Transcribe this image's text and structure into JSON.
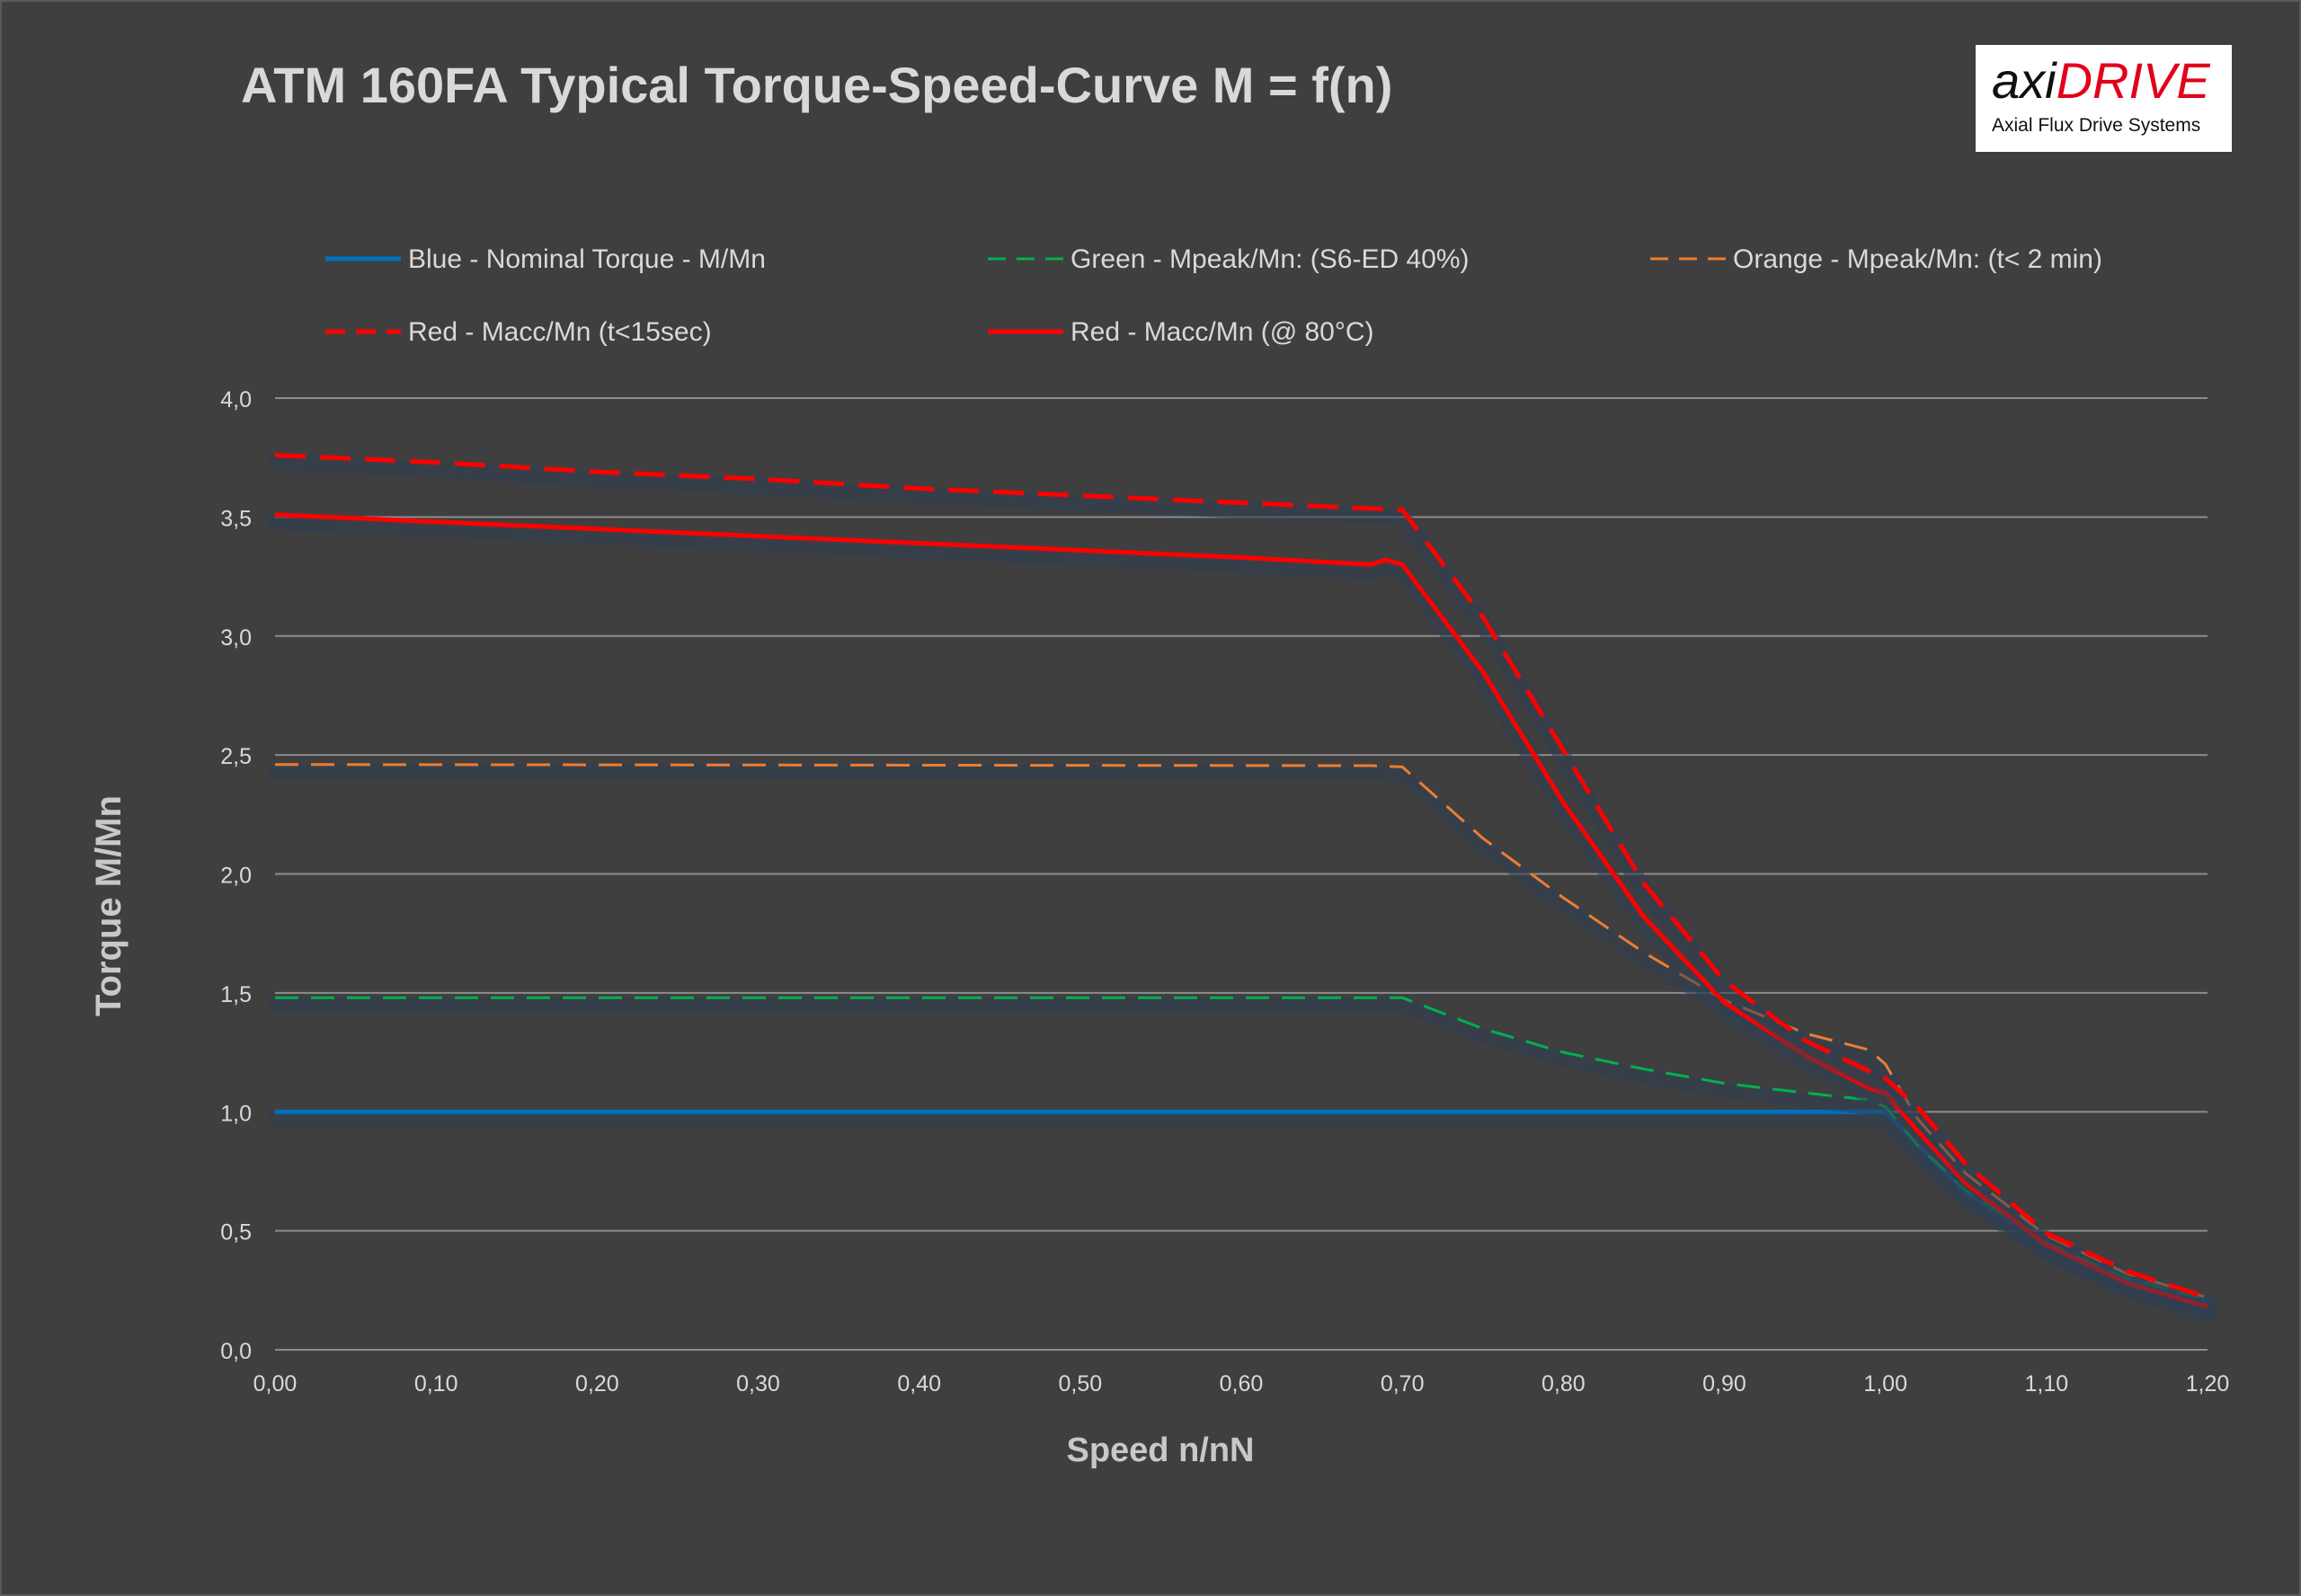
{
  "header": {
    "title": "ATM 160FA Typical Torque-Speed-Curve M = f(n)",
    "logo_main_a": "axi",
    "logo_main_b": "DRIVE",
    "logo_sub": "Axial Flux Drive Systems"
  },
  "colors": {
    "background": "#3f3f3f",
    "text": "#d9d9d9",
    "grid": "#8c8c8c",
    "blue": "#0070c0",
    "green": "#00b050",
    "orange": "#ed7d31",
    "red": "#ff0000",
    "logo_red": "#e2001a"
  },
  "chart_data": {
    "type": "line",
    "title": "ATM 160FA Typical Torque-Speed-Curve M = f(n)",
    "xlabel": "Speed n/nN",
    "ylabel": "Torque M/Mn",
    "xlim": [
      0,
      1.2
    ],
    "ylim": [
      0,
      4
    ],
    "x_ticks": [
      "0,00",
      "0,10",
      "0,20",
      "0,30",
      "0,40",
      "0,50",
      "0,60",
      "0,70",
      "0,80",
      "0,90",
      "1,00",
      "1,10",
      "1,20"
    ],
    "y_ticks": [
      "0,0",
      "0,5",
      "1,0",
      "1,5",
      "2,0",
      "2,5",
      "3,0",
      "3,5",
      "4,0"
    ],
    "grid": "horizontal",
    "legend_position": "top",
    "series": [
      {
        "name": "Blue -  Nominal Torque  - M/Mn",
        "color": "#0070c0",
        "dash": "solid",
        "width": 5,
        "x": [
          0,
          0.7,
          0.98,
          1.0,
          1.02,
          1.05,
          1.1,
          1.15,
          1.2
        ],
        "y": [
          1.0,
          1.0,
          1.0,
          1.0,
          0.86,
          0.66,
          0.44,
          0.3,
          0.2
        ]
      },
      {
        "name": "Green -  Mpeak/Mn: (S6-ED 40%)",
        "color": "#00b050",
        "dash": "long-dash",
        "width": 3,
        "x": [
          0,
          0.7,
          0.75,
          0.8,
          0.85,
          0.9,
          0.95,
          0.99,
          1.0,
          1.02,
          1.05,
          1.1,
          1.15,
          1.2
        ],
        "y": [
          1.48,
          1.48,
          1.35,
          1.25,
          1.18,
          1.12,
          1.08,
          1.05,
          1.02,
          0.86,
          0.67,
          0.45,
          0.3,
          0.21
        ]
      },
      {
        "name": "Orange -  Mpeak/Mn: (t< 2 min)",
        "color": "#ed7d31",
        "dash": "long-dash",
        "width": 3,
        "x": [
          0,
          0.68,
          0.7,
          0.75,
          0.8,
          0.85,
          0.9,
          0.95,
          0.99,
          1.0,
          1.02,
          1.05,
          1.1,
          1.15,
          1.2
        ],
        "y": [
          2.46,
          2.455,
          2.45,
          2.15,
          1.9,
          1.67,
          1.47,
          1.33,
          1.26,
          1.2,
          0.97,
          0.74,
          0.48,
          0.32,
          0.22
        ]
      },
      {
        "name": "Red -  Macc/Mn (t<15sec)",
        "color": "#ff0000",
        "dash": "long-dash",
        "width": 5,
        "x": [
          0,
          0.1,
          0.2,
          0.3,
          0.4,
          0.5,
          0.6,
          0.7,
          0.75,
          0.8,
          0.85,
          0.9,
          0.95,
          0.99,
          1.0,
          1.02,
          1.05,
          1.1,
          1.15,
          1.2
        ],
        "y": [
          3.76,
          3.73,
          3.69,
          3.66,
          3.62,
          3.59,
          3.56,
          3.53,
          3.08,
          2.52,
          1.96,
          1.55,
          1.3,
          1.17,
          1.14,
          1.02,
          0.78,
          0.49,
          0.33,
          0.22
        ]
      },
      {
        "name": "Red -  Macc/Mn (@ 80°C)",
        "color": "#ff0000",
        "dash": "solid",
        "width": 5,
        "x": [
          0,
          0.1,
          0.2,
          0.3,
          0.4,
          0.5,
          0.6,
          0.68,
          0.69,
          0.7,
          0.75,
          0.8,
          0.85,
          0.9,
          0.95,
          0.99,
          1.0,
          1.02,
          1.05,
          1.1,
          1.15,
          1.2
        ],
        "y": [
          3.51,
          3.48,
          3.45,
          3.42,
          3.39,
          3.36,
          3.33,
          3.3,
          3.32,
          3.3,
          2.85,
          2.3,
          1.82,
          1.46,
          1.24,
          1.1,
          1.08,
          0.92,
          0.7,
          0.44,
          0.28,
          0.18
        ]
      }
    ]
  }
}
